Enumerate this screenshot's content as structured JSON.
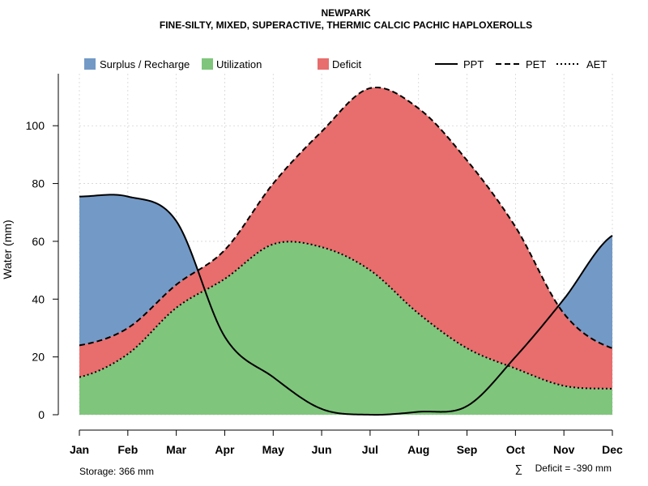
{
  "chart_data": {
    "type": "area",
    "title": "NEWPARK",
    "subtitle": "FINE-SILTY, MIXED, SUPERACTIVE, THERMIC CALCIC PACHIC HAPLOXEROLLS",
    "xlabel": "",
    "ylabel": "Water (mm)",
    "ylim": [
      0,
      118
    ],
    "yticks": [
      0,
      20,
      40,
      60,
      80,
      100
    ],
    "categories": [
      "Jan",
      "Feb",
      "Mar",
      "Apr",
      "May",
      "Jun",
      "Jul",
      "Aug",
      "Sep",
      "Oct",
      "Nov",
      "Dec"
    ],
    "series": [
      {
        "name": "PPT",
        "style": "solid",
        "values": [
          75.5,
          75.5,
          67,
          27,
          13,
          2,
          0,
          1,
          3,
          20,
          40,
          62
        ]
      },
      {
        "name": "PET",
        "style": "dashed",
        "values": [
          24,
          30,
          45,
          57,
          80,
          98,
          113,
          106,
          88,
          65,
          35,
          23
        ]
      },
      {
        "name": "AET",
        "style": "dotted",
        "values": [
          13,
          21,
          37,
          47,
          59,
          58,
          50,
          35,
          23,
          16,
          10,
          9
        ]
      }
    ],
    "fills": [
      {
        "name": "Surplus / Recharge",
        "color": "#7399C6"
      },
      {
        "name": "Utilization",
        "color": "#7FC57C"
      },
      {
        "name": "Deficit",
        "color": "#E86D6D"
      }
    ],
    "grid": true,
    "legend_position": "top",
    "annotations": {
      "storage": "Storage: 366 mm",
      "deficit_symbol": "∑",
      "deficit": "Deficit = -390 mm"
    }
  }
}
